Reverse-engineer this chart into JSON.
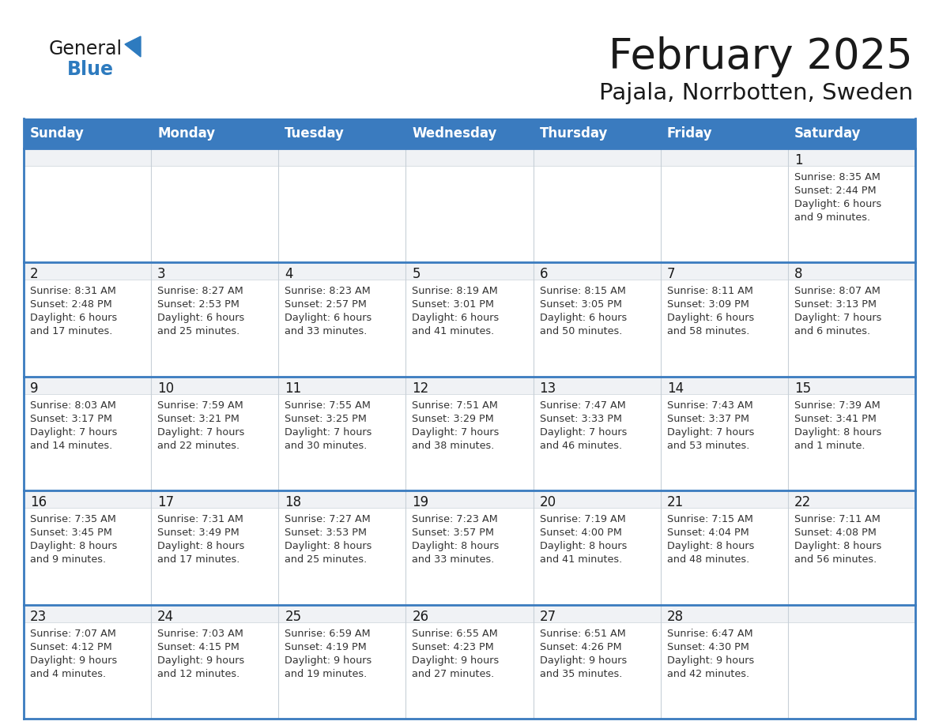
{
  "title": "February 2025",
  "subtitle": "Pajala, Norrbotten, Sweden",
  "days_of_week": [
    "Sunday",
    "Monday",
    "Tuesday",
    "Wednesday",
    "Thursday",
    "Friday",
    "Saturday"
  ],
  "header_bg": "#3a7bbf",
  "header_text": "#ffffff",
  "cell_bg": "#f0f2f5",
  "cell_white": "#ffffff",
  "border_color": "#3a7bbf",
  "divider_color": "#c8d0d8",
  "text_color": "#333333",
  "day_number_color": "#1a1a1a",
  "title_color": "#1a1a1a",
  "logo_black": "#1a1a1a",
  "logo_blue": "#2e7bbf",
  "triangle_blue": "#2e7bbf",
  "calendar_data": [
    [
      {
        "day": null,
        "info": ""
      },
      {
        "day": null,
        "info": ""
      },
      {
        "day": null,
        "info": ""
      },
      {
        "day": null,
        "info": ""
      },
      {
        "day": null,
        "info": ""
      },
      {
        "day": null,
        "info": ""
      },
      {
        "day": 1,
        "info": "Sunrise: 8:35 AM\nSunset: 2:44 PM\nDaylight: 6 hours\nand 9 minutes."
      }
    ],
    [
      {
        "day": 2,
        "info": "Sunrise: 8:31 AM\nSunset: 2:48 PM\nDaylight: 6 hours\nand 17 minutes."
      },
      {
        "day": 3,
        "info": "Sunrise: 8:27 AM\nSunset: 2:53 PM\nDaylight: 6 hours\nand 25 minutes."
      },
      {
        "day": 4,
        "info": "Sunrise: 8:23 AM\nSunset: 2:57 PM\nDaylight: 6 hours\nand 33 minutes."
      },
      {
        "day": 5,
        "info": "Sunrise: 8:19 AM\nSunset: 3:01 PM\nDaylight: 6 hours\nand 41 minutes."
      },
      {
        "day": 6,
        "info": "Sunrise: 8:15 AM\nSunset: 3:05 PM\nDaylight: 6 hours\nand 50 minutes."
      },
      {
        "day": 7,
        "info": "Sunrise: 8:11 AM\nSunset: 3:09 PM\nDaylight: 6 hours\nand 58 minutes."
      },
      {
        "day": 8,
        "info": "Sunrise: 8:07 AM\nSunset: 3:13 PM\nDaylight: 7 hours\nand 6 minutes."
      }
    ],
    [
      {
        "day": 9,
        "info": "Sunrise: 8:03 AM\nSunset: 3:17 PM\nDaylight: 7 hours\nand 14 minutes."
      },
      {
        "day": 10,
        "info": "Sunrise: 7:59 AM\nSunset: 3:21 PM\nDaylight: 7 hours\nand 22 minutes."
      },
      {
        "day": 11,
        "info": "Sunrise: 7:55 AM\nSunset: 3:25 PM\nDaylight: 7 hours\nand 30 minutes."
      },
      {
        "day": 12,
        "info": "Sunrise: 7:51 AM\nSunset: 3:29 PM\nDaylight: 7 hours\nand 38 minutes."
      },
      {
        "day": 13,
        "info": "Sunrise: 7:47 AM\nSunset: 3:33 PM\nDaylight: 7 hours\nand 46 minutes."
      },
      {
        "day": 14,
        "info": "Sunrise: 7:43 AM\nSunset: 3:37 PM\nDaylight: 7 hours\nand 53 minutes."
      },
      {
        "day": 15,
        "info": "Sunrise: 7:39 AM\nSunset: 3:41 PM\nDaylight: 8 hours\nand 1 minute."
      }
    ],
    [
      {
        "day": 16,
        "info": "Sunrise: 7:35 AM\nSunset: 3:45 PM\nDaylight: 8 hours\nand 9 minutes."
      },
      {
        "day": 17,
        "info": "Sunrise: 7:31 AM\nSunset: 3:49 PM\nDaylight: 8 hours\nand 17 minutes."
      },
      {
        "day": 18,
        "info": "Sunrise: 7:27 AM\nSunset: 3:53 PM\nDaylight: 8 hours\nand 25 minutes."
      },
      {
        "day": 19,
        "info": "Sunrise: 7:23 AM\nSunset: 3:57 PM\nDaylight: 8 hours\nand 33 minutes."
      },
      {
        "day": 20,
        "info": "Sunrise: 7:19 AM\nSunset: 4:00 PM\nDaylight: 8 hours\nand 41 minutes."
      },
      {
        "day": 21,
        "info": "Sunrise: 7:15 AM\nSunset: 4:04 PM\nDaylight: 8 hours\nand 48 minutes."
      },
      {
        "day": 22,
        "info": "Sunrise: 7:11 AM\nSunset: 4:08 PM\nDaylight: 8 hours\nand 56 minutes."
      }
    ],
    [
      {
        "day": 23,
        "info": "Sunrise: 7:07 AM\nSunset: 4:12 PM\nDaylight: 9 hours\nand 4 minutes."
      },
      {
        "day": 24,
        "info": "Sunrise: 7:03 AM\nSunset: 4:15 PM\nDaylight: 9 hours\nand 12 minutes."
      },
      {
        "day": 25,
        "info": "Sunrise: 6:59 AM\nSunset: 4:19 PM\nDaylight: 9 hours\nand 19 minutes."
      },
      {
        "day": 26,
        "info": "Sunrise: 6:55 AM\nSunset: 4:23 PM\nDaylight: 9 hours\nand 27 minutes."
      },
      {
        "day": 27,
        "info": "Sunrise: 6:51 AM\nSunset: 4:26 PM\nDaylight: 9 hours\nand 35 minutes."
      },
      {
        "day": 28,
        "info": "Sunrise: 6:47 AM\nSunset: 4:30 PM\nDaylight: 9 hours\nand 42 minutes."
      },
      {
        "day": null,
        "info": ""
      }
    ]
  ]
}
